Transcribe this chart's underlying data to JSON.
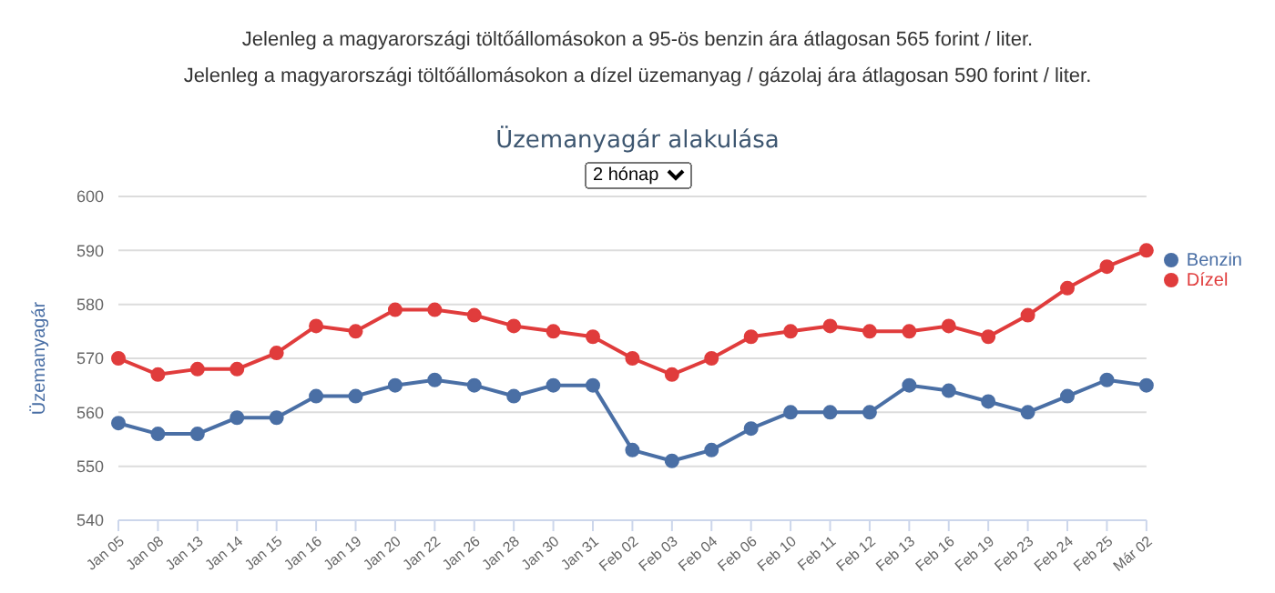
{
  "chart_data": {
    "type": "line",
    "title": "Üzemanyagár alakulása",
    "subtitle": "2 hónap",
    "ylabel": "Üzemanyagár",
    "annotations": [
      "Jelenleg a magyarországi töltőállomásokon a 95-ös benzin ára átlagosan 565 forint / liter.",
      "Jelenleg a magyarországi töltőállomásokon a dízel üzemanyag / gázolaj ára átlagosan 590 forint / liter."
    ],
    "categories": [
      "Jan 05",
      "Jan 08",
      "Jan 13",
      "Jan 14",
      "Jan 15",
      "Jan 16",
      "Jan 19",
      "Jan 20",
      "Jan 22",
      "Jan 26",
      "Jan 28",
      "Jan 30",
      "Jan 31",
      "Feb 02",
      "Feb 03",
      "Feb 04",
      "Feb 06",
      "Feb 10",
      "Feb 11",
      "Feb 12",
      "Feb 13",
      "Feb 16",
      "Feb 19",
      "Feb 23",
      "Feb 24",
      "Feb 25",
      "Már 02"
    ],
    "series": [
      {
        "name": "Benzin",
        "color": "#4a6fa5",
        "values": [
          558,
          556,
          556,
          559,
          559,
          563,
          563,
          565,
          566,
          565,
          563,
          565,
          565,
          553,
          551,
          553,
          557,
          560,
          560,
          560,
          565,
          564,
          562,
          560,
          563,
          566,
          565
        ]
      },
      {
        "name": "Dízel",
        "color": "#e03c3c",
        "values": [
          570,
          567,
          568,
          568,
          571,
          576,
          575,
          579,
          579,
          578,
          576,
          575,
          574,
          570,
          567,
          570,
          574,
          575,
          576,
          575,
          575,
          576,
          574,
          578,
          583,
          587,
          590
        ]
      }
    ],
    "ylim": [
      540,
      600
    ],
    "yticks": [
      540,
      550,
      560,
      570,
      580,
      590,
      600
    ],
    "grid": "y",
    "legend": "right",
    "marker": "circle",
    "line_style": "solid"
  }
}
